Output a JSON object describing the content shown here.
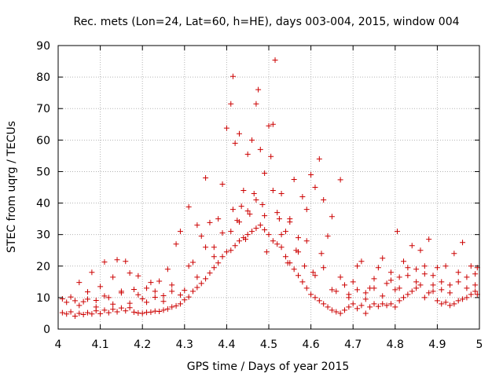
{
  "chart_data": {
    "type": "scatter",
    "title": "Rec. mets (Lon=24, Lat=60, h=HE), days 003-004, 2015, window 004",
    "xlabel": "GPS time / Days of year 2015",
    "ylabel": "STEC from uqrg / TECUs",
    "xlim": [
      4,
      5
    ],
    "ylim": [
      0,
      90
    ],
    "x_ticks": [
      4,
      4.1,
      4.2,
      4.3,
      4.4,
      4.5,
      4.6,
      4.7,
      4.8,
      4.9,
      5
    ],
    "x_tick_labels": [
      "4",
      "4.1",
      "4.2",
      "4.3",
      "4.4",
      "4.5",
      "4.6",
      "4.7",
      "4.8",
      "4.9",
      "5"
    ],
    "y_ticks": [
      0,
      10,
      20,
      30,
      40,
      50,
      60,
      70,
      80,
      90
    ],
    "y_tick_labels": [
      "0",
      "10",
      "20",
      "30",
      "40",
      "50",
      "60",
      "70",
      "80",
      "90"
    ],
    "grid": true,
    "marker": "plus",
    "color": "#cc0000",
    "series": [
      {
        "points": [
          [
            4.01,
            5.2
          ],
          [
            4.01,
            9.6
          ],
          [
            4.02,
            4.8
          ],
          [
            4.02,
            8.5
          ],
          [
            4.03,
            5.5
          ],
          [
            4.03,
            10.2
          ],
          [
            4.04,
            4.1
          ],
          [
            4.04,
            9.0
          ],
          [
            4.05,
            5.0
          ],
          [
            4.05,
            14.8
          ],
          [
            4.06,
            4.6
          ],
          [
            4.06,
            8.7
          ],
          [
            4.07,
            5.2
          ],
          [
            4.07,
            11.8
          ],
          [
            4.08,
            4.8
          ],
          [
            4.08,
            18.0
          ],
          [
            4.09,
            5.8
          ],
          [
            4.09,
            9.1
          ],
          [
            4.1,
            4.9
          ],
          [
            4.1,
            13.5
          ],
          [
            4.11,
            6.0
          ],
          [
            4.11,
            21.3
          ],
          [
            4.12,
            5.2
          ],
          [
            4.12,
            10.0
          ],
          [
            4.13,
            6.3
          ],
          [
            4.13,
            16.5
          ],
          [
            4.14,
            5.5
          ],
          [
            4.14,
            22.0
          ],
          [
            4.15,
            6.7
          ],
          [
            4.15,
            12.0
          ],
          [
            4.16,
            5.8
          ],
          [
            4.16,
            21.5
          ],
          [
            4.17,
            6.8
          ],
          [
            4.17,
            17.8
          ],
          [
            4.18,
            5.4
          ],
          [
            4.18,
            12.6
          ],
          [
            4.19,
            5.1
          ],
          [
            4.19,
            16.9
          ],
          [
            4.2,
            5.0
          ],
          [
            4.2,
            9.6
          ],
          [
            4.21,
            5.3
          ],
          [
            4.21,
            13.0
          ],
          [
            4.22,
            5.4
          ],
          [
            4.22,
            14.8
          ],
          [
            4.23,
            5.7
          ],
          [
            4.23,
            10.1
          ],
          [
            4.24,
            5.6
          ],
          [
            4.24,
            15.2
          ],
          [
            4.25,
            6.0
          ],
          [
            4.25,
            10.6
          ],
          [
            4.26,
            6.4
          ],
          [
            4.26,
            19.0
          ],
          [
            4.27,
            7.0
          ],
          [
            4.27,
            12.0
          ],
          [
            4.28,
            7.4
          ],
          [
            4.28,
            27.0
          ],
          [
            4.29,
            8.0
          ],
          [
            4.29,
            31.0
          ],
          [
            4.3,
            9.3
          ],
          [
            4.3,
            12.3
          ],
          [
            4.31,
            10.2
          ],
          [
            4.31,
            38.8
          ],
          [
            4.32,
            12.0
          ],
          [
            4.32,
            21.2
          ],
          [
            4.33,
            13.2
          ],
          [
            4.33,
            33.0
          ],
          [
            4.34,
            14.5
          ],
          [
            4.34,
            29.5
          ],
          [
            4.35,
            16.0
          ],
          [
            4.35,
            48.0
          ],
          [
            4.36,
            17.8
          ],
          [
            4.36,
            33.8
          ],
          [
            4.37,
            19.5
          ],
          [
            4.37,
            26.0
          ],
          [
            4.38,
            21.0
          ],
          [
            4.38,
            35.0
          ],
          [
            4.39,
            23.0
          ],
          [
            4.39,
            46.0
          ],
          [
            4.4,
            24.5
          ],
          [
            4.4,
            63.8
          ],
          [
            4.41,
            25.0
          ],
          [
            4.41,
            71.5
          ],
          [
            4.415,
            80.2
          ],
          [
            4.42,
            26.5
          ],
          [
            4.42,
            59.0
          ],
          [
            4.43,
            28.0
          ],
          [
            4.43,
            62.0
          ],
          [
            4.44,
            29.0
          ],
          [
            4.44,
            44.0
          ],
          [
            4.45,
            30.0
          ],
          [
            4.45,
            55.5
          ],
          [
            4.46,
            31.0
          ],
          [
            4.46,
            60.0
          ],
          [
            4.47,
            32.0
          ],
          [
            4.47,
            71.5
          ],
          [
            4.475,
            76.0
          ],
          [
            4.48,
            33.0
          ],
          [
            4.48,
            57.0
          ],
          [
            4.49,
            31.5
          ],
          [
            4.49,
            49.5
          ],
          [
            4.5,
            30.0
          ],
          [
            4.5,
            64.5
          ],
          [
            4.505,
            54.8
          ],
          [
            4.515,
            85.4
          ],
          [
            4.51,
            28.0
          ],
          [
            4.51,
            65.0
          ],
          [
            4.52,
            27.0
          ],
          [
            4.52,
            37.0
          ],
          [
            4.53,
            26.0
          ],
          [
            4.53,
            43.0
          ],
          [
            4.54,
            23.0
          ],
          [
            4.54,
            31.0
          ],
          [
            4.55,
            21.0
          ],
          [
            4.55,
            34.0
          ],
          [
            4.56,
            19.0
          ],
          [
            4.56,
            47.5
          ],
          [
            4.57,
            17.0
          ],
          [
            4.57,
            29.0
          ],
          [
            4.58,
            15.0
          ],
          [
            4.58,
            42.0
          ],
          [
            4.59,
            13.0
          ],
          [
            4.59,
            38.0
          ],
          [
            4.6,
            11.0
          ],
          [
            4.6,
            49.0
          ],
          [
            4.61,
            10.0
          ],
          [
            4.61,
            45.0
          ],
          [
            4.62,
            9.0
          ],
          [
            4.62,
            54.0
          ],
          [
            4.63,
            8.0
          ],
          [
            4.63,
            41.0
          ],
          [
            4.64,
            7.0
          ],
          [
            4.64,
            29.5
          ],
          [
            4.65,
            6.0
          ],
          [
            4.65,
            35.7
          ],
          [
            4.66,
            5.5
          ],
          [
            4.66,
            12.0
          ],
          [
            4.67,
            5.0
          ],
          [
            4.67,
            47.4
          ],
          [
            4.68,
            6.0
          ],
          [
            4.68,
            14.0
          ],
          [
            4.69,
            7.0
          ],
          [
            4.69,
            11.0
          ],
          [
            4.7,
            8.0
          ],
          [
            4.7,
            15.0
          ],
          [
            4.71,
            6.5
          ],
          [
            4.71,
            20.0
          ],
          [
            4.72,
            7.5
          ],
          [
            4.72,
            21.5
          ],
          [
            4.73,
            5.0
          ],
          [
            4.73,
            11.5
          ],
          [
            4.74,
            7.0
          ],
          [
            4.74,
            13.0
          ],
          [
            4.75,
            8.0
          ],
          [
            4.75,
            16.0
          ],
          [
            4.76,
            7.2
          ],
          [
            4.76,
            19.5
          ],
          [
            4.77,
            8.0
          ],
          [
            4.77,
            22.5
          ],
          [
            4.78,
            7.5
          ],
          [
            4.78,
            14.5
          ],
          [
            4.79,
            8.0
          ],
          [
            4.79,
            18.0
          ],
          [
            4.8,
            7.0
          ],
          [
            4.8,
            12.5
          ],
          [
            4.805,
            31.0
          ],
          [
            4.81,
            9.0
          ],
          [
            4.81,
            16.5
          ],
          [
            4.82,
            10.0
          ],
          [
            4.82,
            21.5
          ],
          [
            4.83,
            11.0
          ],
          [
            4.83,
            17.0
          ],
          [
            4.84,
            12.0
          ],
          [
            4.84,
            26.5
          ],
          [
            4.85,
            13.0
          ],
          [
            4.85,
            19.0
          ],
          [
            4.86,
            14.0
          ],
          [
            4.86,
            25.0
          ],
          [
            4.87,
            10.0
          ],
          [
            4.87,
            20.0
          ],
          [
            4.88,
            11.5
          ],
          [
            4.88,
            28.5
          ],
          [
            4.89,
            12.0
          ],
          [
            4.89,
            17.0
          ],
          [
            4.9,
            9.0
          ],
          [
            4.9,
            19.5
          ],
          [
            4.91,
            8.0
          ],
          [
            4.91,
            15.0
          ],
          [
            4.92,
            8.5
          ],
          [
            4.92,
            20.0
          ],
          [
            4.93,
            7.5
          ],
          [
            4.93,
            14.0
          ],
          [
            4.94,
            8.0
          ],
          [
            4.94,
            24.0
          ],
          [
            4.95,
            9.0
          ],
          [
            4.95,
            18.0
          ],
          [
            4.96,
            9.5
          ],
          [
            4.96,
            27.5
          ],
          [
            4.97,
            10.0
          ],
          [
            4.97,
            16.5
          ],
          [
            4.98,
            11.0
          ],
          [
            4.98,
            20.0
          ],
          [
            4.99,
            12.0
          ],
          [
            4.99,
            17.5
          ],
          [
            4.995,
            11.0
          ],
          [
            4.995,
            19.5
          ],
          [
            4.05,
            7.5
          ],
          [
            4.09,
            7.0
          ],
          [
            4.13,
            7.9
          ],
          [
            4.17,
            8.2
          ],
          [
            4.21,
            8.5
          ],
          [
            4.25,
            8.8
          ],
          [
            4.29,
            10.8
          ],
          [
            4.33,
            16.5
          ],
          [
            4.37,
            23.0
          ],
          [
            4.41,
            31.0
          ],
          [
            4.45,
            37.5
          ],
          [
            4.49,
            36.0
          ],
          [
            4.53,
            30.0
          ],
          [
            4.57,
            24.5
          ],
          [
            4.61,
            17.0
          ],
          [
            4.65,
            12.5
          ],
          [
            4.69,
            10.0
          ],
          [
            4.73,
            9.5
          ],
          [
            4.77,
            10.5
          ],
          [
            4.81,
            13.0
          ],
          [
            4.85,
            15.0
          ],
          [
            4.89,
            14.0
          ],
          [
            4.93,
            11.5
          ],
          [
            4.97,
            13.0
          ],
          [
            4.07,
            9.5
          ],
          [
            4.11,
            10.5
          ],
          [
            4.15,
            11.5
          ],
          [
            4.19,
            10.9
          ],
          [
            4.23,
            12.0
          ],
          [
            4.27,
            14.0
          ],
          [
            4.31,
            20.0
          ],
          [
            4.35,
            26.0
          ],
          [
            4.39,
            30.5
          ],
          [
            4.43,
            34.0
          ],
          [
            4.47,
            41.0
          ],
          [
            4.51,
            44.0
          ],
          [
            4.55,
            35.0
          ],
          [
            4.59,
            28.0
          ],
          [
            4.63,
            19.5
          ],
          [
            4.67,
            16.5
          ],
          [
            4.71,
            12.5
          ],
          [
            4.75,
            13.0
          ],
          [
            4.79,
            15.5
          ],
          [
            4.83,
            19.5
          ],
          [
            4.87,
            17.5
          ],
          [
            4.91,
            12.5
          ],
          [
            4.95,
            15.0
          ],
          [
            4.99,
            14.0
          ],
          [
            4.415,
            38.0
          ],
          [
            4.425,
            34.5
          ],
          [
            4.435,
            39.0
          ],
          [
            4.445,
            28.5
          ],
          [
            4.455,
            36.5
          ],
          [
            4.465,
            43.0
          ],
          [
            4.485,
            39.5
          ],
          [
            4.495,
            24.5
          ],
          [
            4.525,
            35.0
          ],
          [
            4.545,
            21.0
          ],
          [
            4.565,
            25.0
          ],
          [
            4.585,
            20.0
          ],
          [
            4.605,
            18.0
          ],
          [
            4.625,
            24.0
          ]
        ]
      }
    ]
  }
}
